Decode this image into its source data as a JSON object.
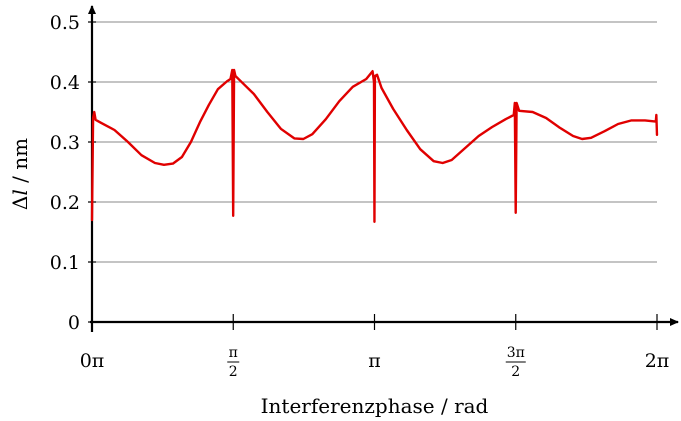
{
  "chart_data": {
    "type": "line",
    "title": "",
    "xlabel": "Interferenzphase / rad",
    "ylabel": "Δl / nm",
    "ylabel_parts": [
      "Δ",
      "l",
      " / nm"
    ],
    "xlim": [
      0,
      6.2832
    ],
    "ylim": [
      0,
      0.5
    ],
    "grid": "horizontal",
    "legend": "none",
    "line_color": "#e00000",
    "y_ticks": [
      {
        "value": 0,
        "label": "0"
      },
      {
        "value": 0.1,
        "label": "0.1"
      },
      {
        "value": 0.2,
        "label": "0.2"
      },
      {
        "value": 0.3,
        "label": "0.3"
      },
      {
        "value": 0.4,
        "label": "0.4"
      },
      {
        "value": 0.5,
        "label": "0.5"
      }
    ],
    "x_ticks": [
      {
        "value": 0,
        "label": "0π"
      },
      {
        "value": 1.5708,
        "label": "π/2",
        "num": "π",
        "den": "2"
      },
      {
        "value": 3.1416,
        "label": "π"
      },
      {
        "value": 4.7124,
        "label": "3π/2",
        "num": "3π",
        "den": "2"
      },
      {
        "value": 6.2832,
        "label": "2π"
      }
    ],
    "series": [
      {
        "values": [
          [
            0.0,
            0.17
          ],
          [
            0.012,
            0.34
          ],
          [
            0.025,
            0.35
          ],
          [
            0.04,
            0.337
          ],
          [
            0.1,
            0.332
          ],
          [
            0.25,
            0.32
          ],
          [
            0.4,
            0.3
          ],
          [
            0.55,
            0.278
          ],
          [
            0.7,
            0.265
          ],
          [
            0.8,
            0.262
          ],
          [
            0.9,
            0.264
          ],
          [
            1.0,
            0.275
          ],
          [
            1.1,
            0.3
          ],
          [
            1.2,
            0.333
          ],
          [
            1.3,
            0.362
          ],
          [
            1.4,
            0.388
          ],
          [
            1.5,
            0.401
          ],
          [
            1.54,
            0.405
          ],
          [
            1.56,
            0.42
          ],
          [
            1.57,
            0.177
          ],
          [
            1.58,
            0.42
          ],
          [
            1.595,
            0.41
          ],
          [
            1.65,
            0.402
          ],
          [
            1.8,
            0.38
          ],
          [
            1.95,
            0.35
          ],
          [
            2.1,
            0.322
          ],
          [
            2.25,
            0.306
          ],
          [
            2.35,
            0.305
          ],
          [
            2.45,
            0.313
          ],
          [
            2.6,
            0.338
          ],
          [
            2.75,
            0.368
          ],
          [
            2.9,
            0.392
          ],
          [
            3.05,
            0.405
          ],
          [
            3.12,
            0.418
          ],
          [
            3.136,
            0.4
          ],
          [
            3.141,
            0.167
          ],
          [
            3.146,
            0.41
          ],
          [
            3.17,
            0.412
          ],
          [
            3.22,
            0.39
          ],
          [
            3.35,
            0.355
          ],
          [
            3.5,
            0.32
          ],
          [
            3.65,
            0.288
          ],
          [
            3.8,
            0.268
          ],
          [
            3.9,
            0.265
          ],
          [
            4.0,
            0.27
          ],
          [
            4.15,
            0.29
          ],
          [
            4.3,
            0.31
          ],
          [
            4.45,
            0.325
          ],
          [
            4.6,
            0.338
          ],
          [
            4.69,
            0.345
          ],
          [
            4.702,
            0.365
          ],
          [
            4.712,
            0.182
          ],
          [
            4.722,
            0.365
          ],
          [
            4.75,
            0.352
          ],
          [
            4.9,
            0.35
          ],
          [
            5.05,
            0.34
          ],
          [
            5.2,
            0.324
          ],
          [
            5.35,
            0.31
          ],
          [
            5.45,
            0.305
          ],
          [
            5.55,
            0.307
          ],
          [
            5.7,
            0.318
          ],
          [
            5.85,
            0.33
          ],
          [
            6.0,
            0.336
          ],
          [
            6.15,
            0.336
          ],
          [
            6.27,
            0.334
          ],
          [
            6.276,
            0.345
          ],
          [
            6.283,
            0.312
          ]
        ]
      }
    ]
  }
}
